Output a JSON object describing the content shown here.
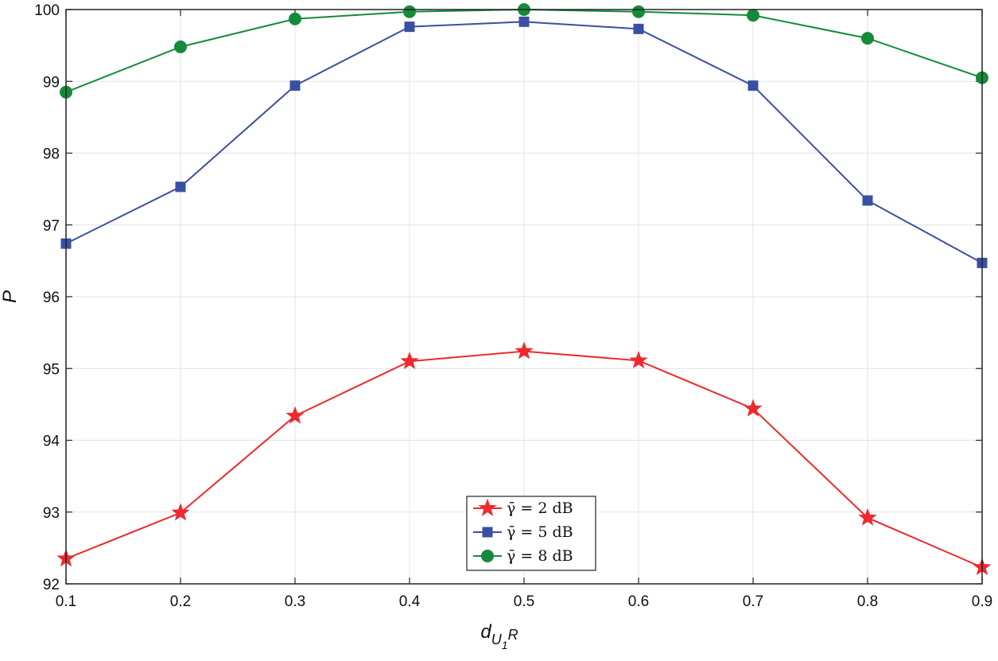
{
  "chart_data": {
    "type": "line",
    "xlabel": "d",
    "xlabel_sub": "U",
    "xlabel_subsub": "1",
    "xlabel_sub2": "R",
    "ylabel": "P",
    "x": [
      0.1,
      0.2,
      0.3,
      0.4,
      0.5,
      0.6,
      0.7,
      0.8,
      0.9
    ],
    "xlim": [
      0.1,
      0.9
    ],
    "ylim": [
      92,
      100
    ],
    "xticks": [
      "0.1",
      "0.2",
      "0.3",
      "0.4",
      "0.5",
      "0.6",
      "0.7",
      "0.8",
      "0.9"
    ],
    "yticks": [
      "92",
      "93",
      "94",
      "95",
      "96",
      "97",
      "98",
      "99",
      "100"
    ],
    "grid": true,
    "legend_position": "bottom-center",
    "series": [
      {
        "name": "γ̄ = 2 dB",
        "marker": "star",
        "color": "#ee2a2f",
        "values": [
          92.35,
          92.99,
          94.34,
          95.1,
          95.24,
          95.11,
          94.44,
          92.92,
          92.23
        ]
      },
      {
        "name": "γ̄ = 5 dB",
        "marker": "square",
        "color": "#3a4fa3",
        "values": [
          96.74,
          97.53,
          98.94,
          99.76,
          99.83,
          99.73,
          98.94,
          97.34,
          96.47
        ]
      },
      {
        "name": "γ̄ = 8 dB",
        "marker": "circle",
        "color": "#158a3b",
        "values": [
          98.85,
          99.48,
          99.87,
          99.97,
          100.0,
          99.97,
          99.92,
          99.6,
          99.05
        ]
      }
    ]
  }
}
